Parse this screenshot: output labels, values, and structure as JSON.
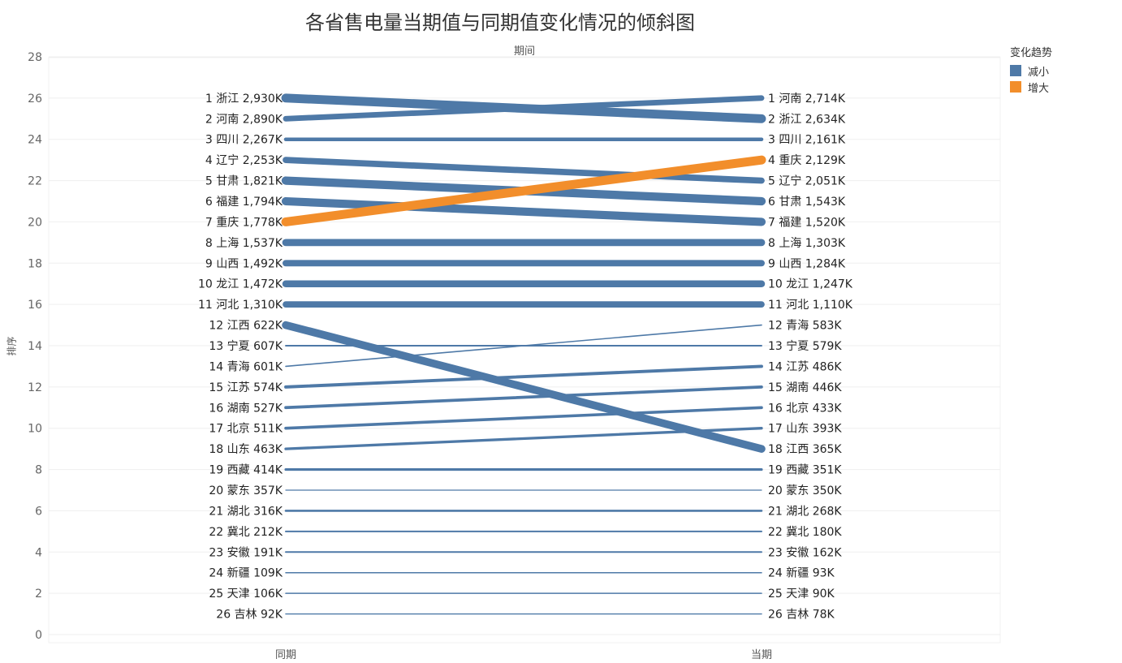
{
  "chart_data": {
    "type": "line",
    "title": "各省售电量当期值与同期值变化情况的倾斜图",
    "column_header": "期间",
    "ylabel": "排序",
    "x_categories": [
      "同期",
      "当期"
    ],
    "ylim": [
      0,
      28
    ],
    "yticks": [
      0,
      2,
      4,
      6,
      8,
      10,
      12,
      14,
      16,
      18,
      20,
      22,
      24,
      26,
      28
    ],
    "legend": {
      "title": "变化趋势",
      "position": "top-right",
      "items": [
        {
          "label": "减小",
          "color": "#4e79a7"
        },
        {
          "label": "增大",
          "color": "#f28e2b"
        }
      ]
    },
    "left_labels": [
      "1 浙江 2,930K",
      "2 河南 2,890K",
      "3 四川 2,267K",
      "4 辽宁 2,253K",
      "5 甘肃 1,821K",
      "6 福建 1,794K",
      "7 重庆 1,778K",
      "8 上海 1,537K",
      "9 山西 1,492K",
      "10 龙江 1,472K",
      "11 河北 1,310K",
      "12 江西 622K",
      "13 宁夏 607K",
      "14 青海 601K",
      "15 江苏 574K",
      "16 湖南 527K",
      "17 北京 511K",
      "18 山东 463K",
      "19 西藏 414K",
      "20 蒙东 357K",
      "21 湖北 316K",
      "22 冀北 212K",
      "23 安徽 191K",
      "24 新疆 109K",
      "25 天津 106K",
      "26 吉林 92K"
    ],
    "right_labels": [
      "1 河南 2,714K",
      "2 浙江 2,634K",
      "3 四川 2,161K",
      "4 重庆 2,129K",
      "5 辽宁 2,051K",
      "6 甘肃 1,543K",
      "7 福建 1,520K",
      "8 上海 1,303K",
      "9 山西 1,284K",
      "10 龙江 1,247K",
      "11 河北 1,110K",
      "12 青海 583K",
      "13 宁夏 579K",
      "14 江苏 486K",
      "15 湖南 446K",
      "16 北京 433K",
      "17 山东 393K",
      "18 江西 365K",
      "19 西藏 351K",
      "20 蒙东 350K",
      "21 湖北 268K",
      "22 冀北 180K",
      "23 安徽 162K",
      "24 新疆 93K",
      "25 天津 90K",
      "26 吉林 78K"
    ],
    "series": [
      {
        "province": "浙江",
        "same_period_rank": 1,
        "current_rank": 2,
        "same_period": 2930,
        "current": 2634,
        "trend": "减小"
      },
      {
        "province": "河南",
        "same_period_rank": 2,
        "current_rank": 1,
        "same_period": 2890,
        "current": 2714,
        "trend": "减小"
      },
      {
        "province": "四川",
        "same_period_rank": 3,
        "current_rank": 3,
        "same_period": 2267,
        "current": 2161,
        "trend": "减小"
      },
      {
        "province": "辽宁",
        "same_period_rank": 4,
        "current_rank": 5,
        "same_period": 2253,
        "current": 2051,
        "trend": "减小"
      },
      {
        "province": "甘肃",
        "same_period_rank": 5,
        "current_rank": 6,
        "same_period": 1821,
        "current": 1543,
        "trend": "减小"
      },
      {
        "province": "福建",
        "same_period_rank": 6,
        "current_rank": 7,
        "same_period": 1794,
        "current": 1520,
        "trend": "减小"
      },
      {
        "province": "重庆",
        "same_period_rank": 7,
        "current_rank": 4,
        "same_period": 1778,
        "current": 2129,
        "trend": "增大"
      },
      {
        "province": "上海",
        "same_period_rank": 8,
        "current_rank": 8,
        "same_period": 1537,
        "current": 1303,
        "trend": "减小"
      },
      {
        "province": "山西",
        "same_period_rank": 9,
        "current_rank": 9,
        "same_period": 1492,
        "current": 1284,
        "trend": "减小"
      },
      {
        "province": "龙江",
        "same_period_rank": 10,
        "current_rank": 10,
        "same_period": 1472,
        "current": 1247,
        "trend": "减小"
      },
      {
        "province": "河北",
        "same_period_rank": 11,
        "current_rank": 11,
        "same_period": 1310,
        "current": 1110,
        "trend": "减小"
      },
      {
        "province": "江西",
        "same_period_rank": 12,
        "current_rank": 18,
        "same_period": 622,
        "current": 365,
        "trend": "减小"
      },
      {
        "province": "宁夏",
        "same_period_rank": 13,
        "current_rank": 13,
        "same_period": 607,
        "current": 579,
        "trend": "减小"
      },
      {
        "province": "青海",
        "same_period_rank": 14,
        "current_rank": 12,
        "same_period": 601,
        "current": 583,
        "trend": "减小"
      },
      {
        "province": "江苏",
        "same_period_rank": 15,
        "current_rank": 14,
        "same_period": 574,
        "current": 486,
        "trend": "减小"
      },
      {
        "province": "湖南",
        "same_period_rank": 16,
        "current_rank": 15,
        "same_period": 527,
        "current": 446,
        "trend": "减小"
      },
      {
        "province": "北京",
        "same_period_rank": 17,
        "current_rank": 16,
        "same_period": 511,
        "current": 433,
        "trend": "减小"
      },
      {
        "province": "山东",
        "same_period_rank": 18,
        "current_rank": 17,
        "same_period": 463,
        "current": 393,
        "trend": "减小"
      },
      {
        "province": "西藏",
        "same_period_rank": 19,
        "current_rank": 19,
        "same_period": 414,
        "current": 351,
        "trend": "减小"
      },
      {
        "province": "蒙东",
        "same_period_rank": 20,
        "current_rank": 20,
        "same_period": 357,
        "current": 350,
        "trend": "减小"
      },
      {
        "province": "湖北",
        "same_period_rank": 21,
        "current_rank": 21,
        "same_period": 316,
        "current": 268,
        "trend": "减小"
      },
      {
        "province": "冀北",
        "same_period_rank": 22,
        "current_rank": 22,
        "same_period": 212,
        "current": 180,
        "trend": "减小"
      },
      {
        "province": "安徽",
        "same_period_rank": 23,
        "current_rank": 23,
        "same_period": 191,
        "current": 162,
        "trend": "减小"
      },
      {
        "province": "新疆",
        "same_period_rank": 24,
        "current_rank": 24,
        "same_period": 109,
        "current": 93,
        "trend": "减小"
      },
      {
        "province": "天津",
        "same_period_rank": 25,
        "current_rank": 25,
        "same_period": 106,
        "current": 90,
        "trend": "减小"
      },
      {
        "province": "吉林",
        "same_period_rank": 26,
        "current_rank": 26,
        "same_period": 92,
        "current": 78,
        "trend": "减小"
      }
    ]
  }
}
